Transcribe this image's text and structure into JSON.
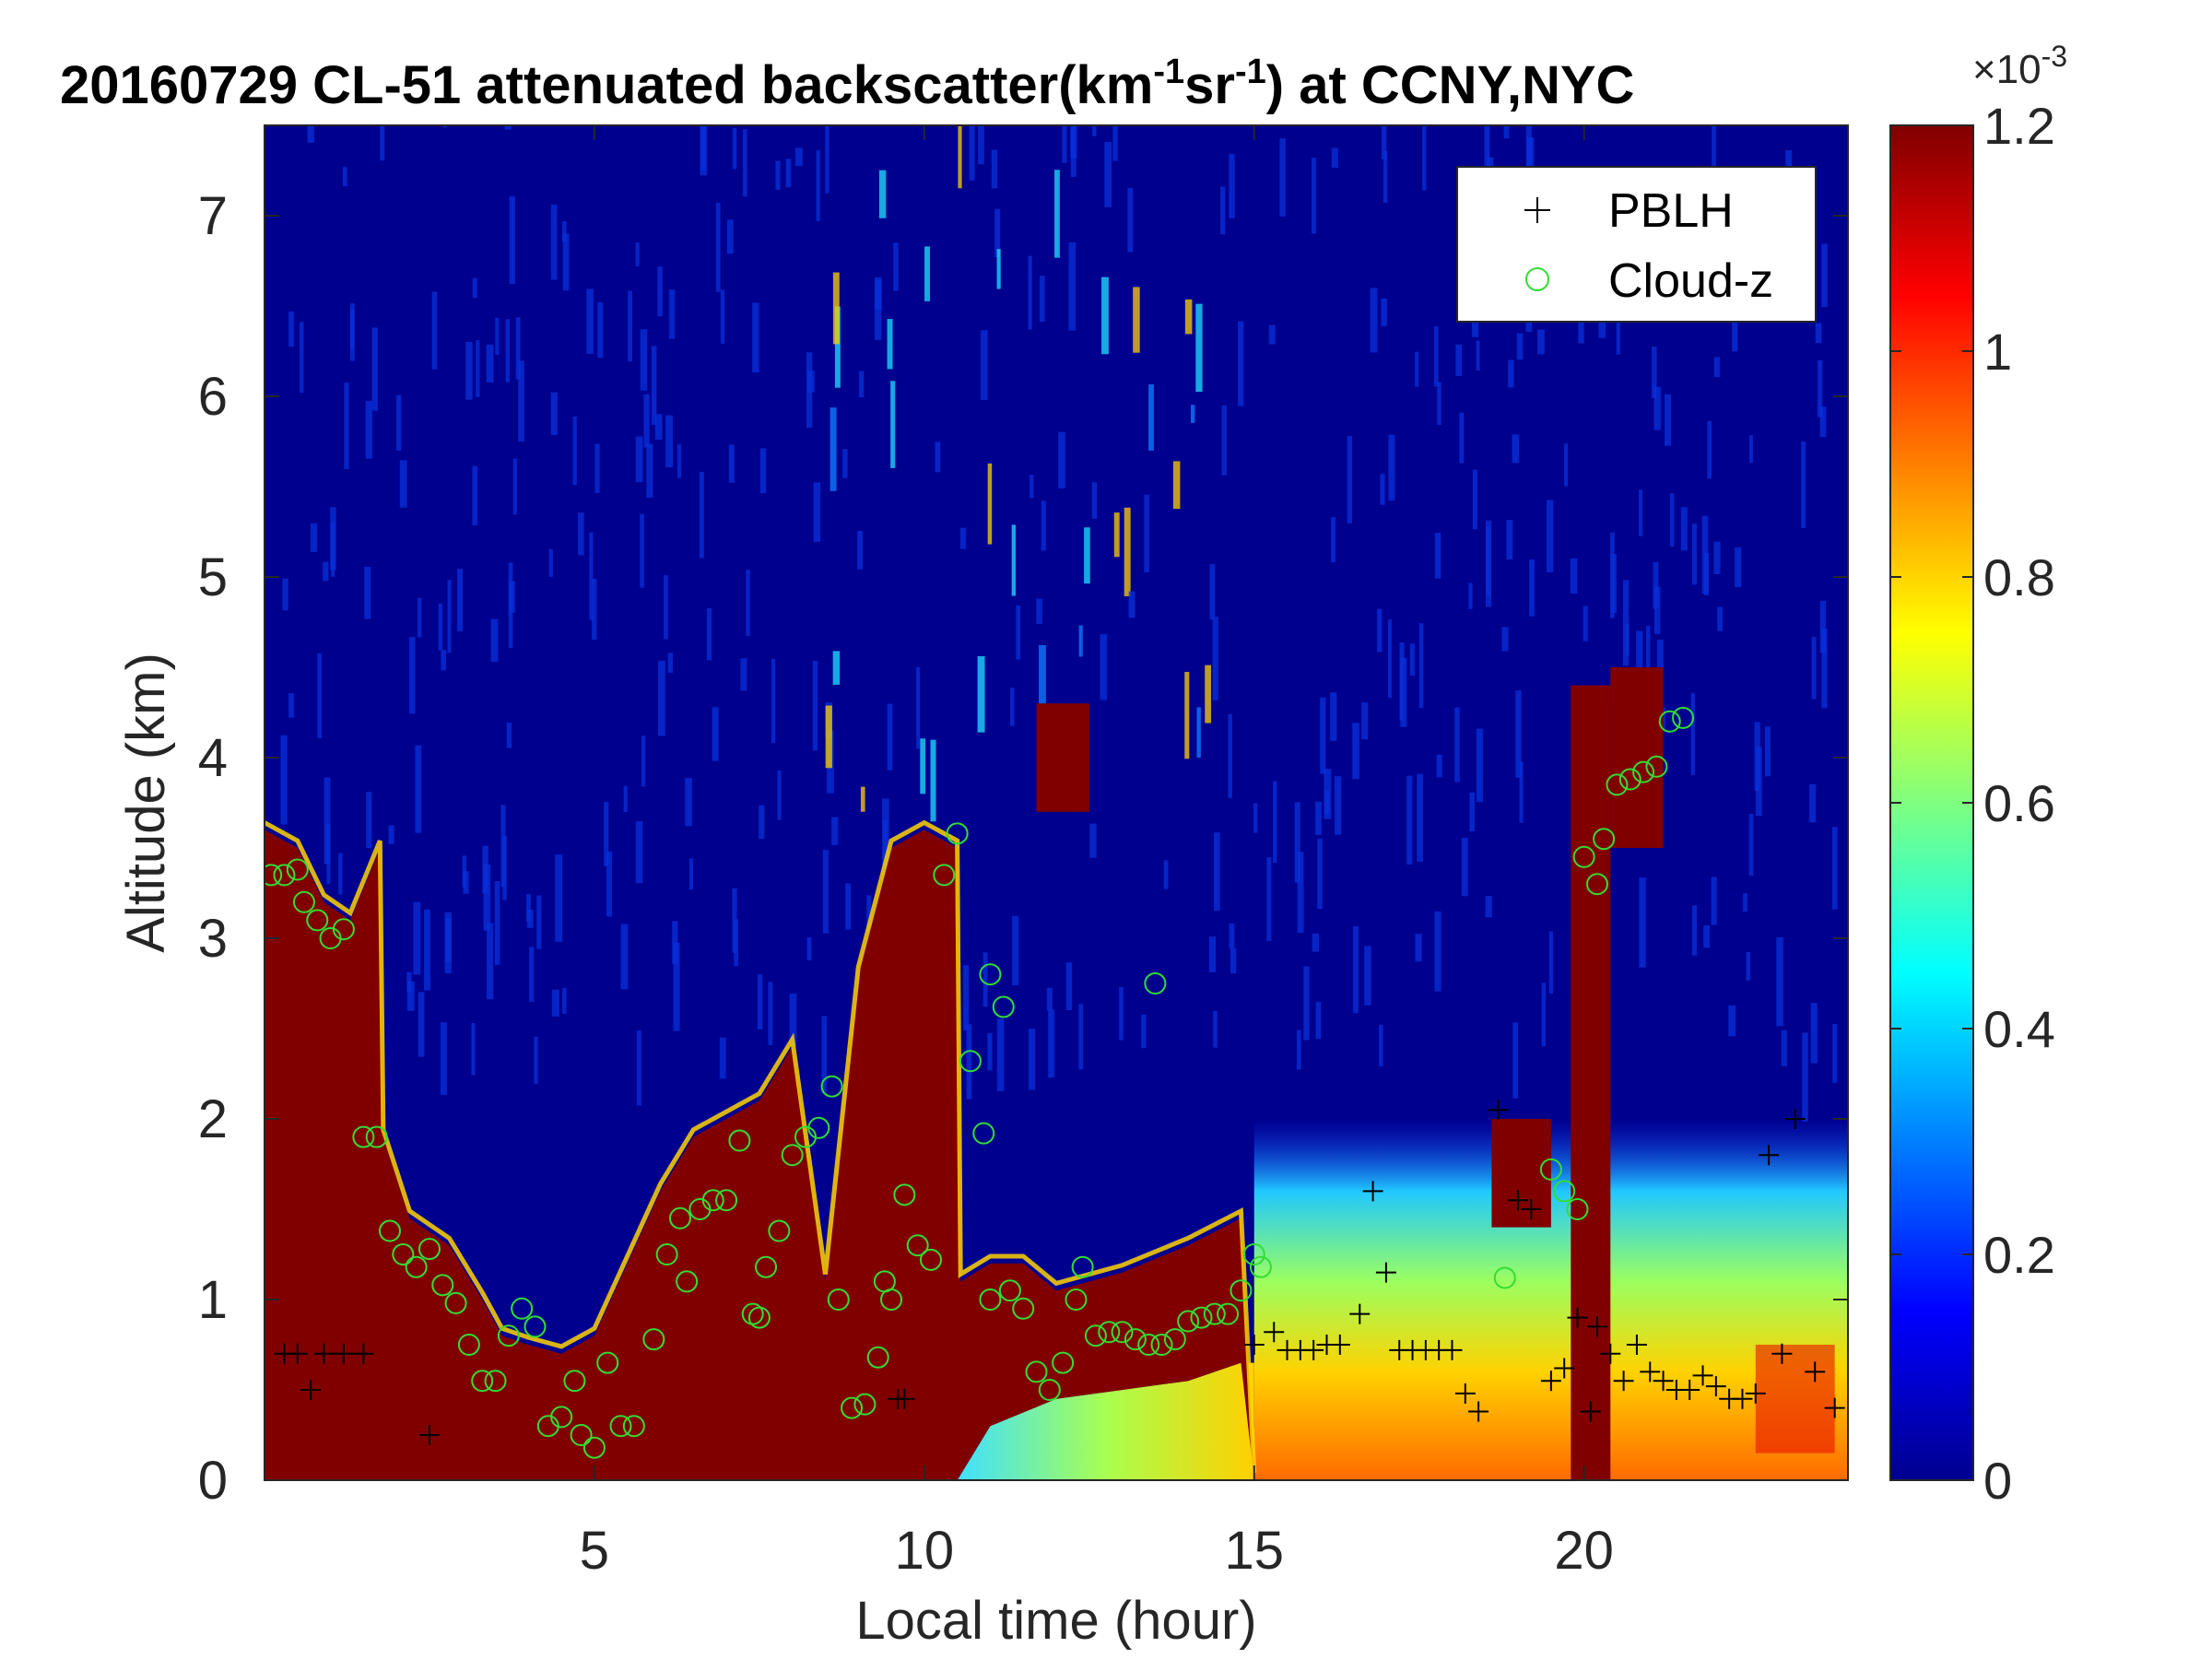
{
  "figure": {
    "title_main": "20160729  CL-51 attenuated backscatter(km",
    "title_sup1": "-1",
    "title_mid": "sr",
    "title_sup2": "-1",
    "title_end": ") at CCNY,NYC"
  },
  "colors": {
    "background_field": "#00008f",
    "saturated": "#800000",
    "pblh_marker": "#000000",
    "cloud_marker": "#33dd33"
  },
  "chart_data": {
    "type": "heatmap",
    "xlabel": "Local time (hour)",
    "ylabel": "Altitude (km)",
    "xlim": [
      0,
      24
    ],
    "ylim": [
      0,
      7.5
    ],
    "xticks": [
      5,
      10,
      15,
      20
    ],
    "yticks": [
      0,
      1,
      2,
      3,
      4,
      5,
      6,
      7
    ],
    "colorbar": {
      "range": [
        0,
        0.0012
      ],
      "tick_labels": [
        "0",
        "0.2",
        "0.4",
        "0.6",
        "0.8",
        "1",
        "1.2"
      ],
      "exponent_label": "×10",
      "exponent_value": "-3",
      "colormap": "jet"
    },
    "legend": {
      "position": "top-right",
      "entries": [
        "PBLH",
        "Cloud-z"
      ]
    },
    "saturated_layer_top_km": [
      [
        0.0,
        3.6
      ],
      [
        0.5,
        3.5
      ],
      [
        0.9,
        3.2
      ],
      [
        1.3,
        3.1
      ],
      [
        1.75,
        3.5
      ],
      [
        1.8,
        1.9
      ],
      [
        2.2,
        1.45
      ],
      [
        2.8,
        1.3
      ],
      [
        3.3,
        1.0
      ],
      [
        3.6,
        0.8
      ],
      [
        4.0,
        0.75
      ],
      [
        4.5,
        0.7
      ],
      [
        5.0,
        0.8
      ],
      [
        5.5,
        1.2
      ],
      [
        6.0,
        1.6
      ],
      [
        6.5,
        1.9
      ],
      [
        7.0,
        2.0
      ],
      [
        7.5,
        2.1
      ],
      [
        8.0,
        2.4
      ],
      [
        8.5,
        1.1
      ],
      [
        9.0,
        2.8
      ],
      [
        9.5,
        3.5
      ],
      [
        10.0,
        3.6
      ],
      [
        10.5,
        3.5
      ],
      [
        10.55,
        1.1
      ],
      [
        11.0,
        1.2
      ],
      [
        11.5,
        1.2
      ],
      [
        12.0,
        1.05
      ],
      [
        13.0,
        1.15
      ],
      [
        14.0,
        1.3
      ],
      [
        14.8,
        1.45
      ],
      [
        15.0,
        0.0
      ]
    ],
    "saturated_layer_bottom_km": [
      [
        0.0,
        0.0
      ],
      [
        10.5,
        0.0
      ],
      [
        11.0,
        0.3
      ],
      [
        12.0,
        0.45
      ],
      [
        13.0,
        0.5
      ],
      [
        14.0,
        0.55
      ],
      [
        14.8,
        0.65
      ]
    ],
    "cloud_patches": [
      {
        "time_range": [
          11.7,
          12.5
        ],
        "altitude_range": [
          3.7,
          4.3
        ]
      },
      {
        "time_range": [
          19.8,
          20.4
        ],
        "altitude_range": [
          0.0,
          4.4
        ]
      },
      {
        "time_range": [
          20.4,
          21.2
        ],
        "altitude_range": [
          3.5,
          4.5
        ]
      },
      {
        "time_range": [
          18.6,
          19.5
        ],
        "altitude_range": [
          1.4,
          2.0
        ]
      }
    ],
    "aerosol_layer": {
      "time_range": [
        15.0,
        24.0
      ],
      "altitude_range": [
        0.0,
        2.0
      ],
      "peak_value": 0.0011
    },
    "series": [
      {
        "name": "PBLH",
        "marker": "+",
        "points": [
          [
            0.3,
            0.7
          ],
          [
            0.5,
            0.7
          ],
          [
            0.7,
            0.5
          ],
          [
            0.9,
            0.7
          ],
          [
            1.2,
            0.7
          ],
          [
            1.5,
            0.7
          ],
          [
            2.5,
            0.25
          ],
          [
            9.6,
            0.45
          ],
          [
            9.7,
            0.45
          ],
          [
            15.0,
            0.75
          ],
          [
            15.3,
            0.82
          ],
          [
            15.5,
            0.72
          ],
          [
            15.7,
            0.72
          ],
          [
            15.9,
            0.72
          ],
          [
            16.1,
            0.75
          ],
          [
            16.3,
            0.75
          ],
          [
            16.6,
            0.92
          ],
          [
            16.8,
            1.6
          ],
          [
            17.0,
            1.15
          ],
          [
            17.2,
            0.72
          ],
          [
            17.4,
            0.72
          ],
          [
            17.6,
            0.72
          ],
          [
            17.8,
            0.72
          ],
          [
            18.0,
            0.72
          ],
          [
            18.2,
            0.48
          ],
          [
            18.4,
            0.38
          ],
          [
            18.7,
            2.05
          ],
          [
            19.0,
            1.55
          ],
          [
            19.2,
            1.5
          ],
          [
            19.5,
            0.55
          ],
          [
            19.7,
            0.62
          ],
          [
            19.9,
            0.9
          ],
          [
            20.2,
            0.85
          ],
          [
            20.4,
            0.7
          ],
          [
            20.6,
            0.55
          ],
          [
            20.8,
            0.75
          ],
          [
            21.0,
            0.6
          ],
          [
            21.2,
            0.55
          ],
          [
            21.4,
            0.5
          ],
          [
            21.6,
            0.5
          ],
          [
            21.8,
            0.58
          ],
          [
            22.0,
            0.52
          ],
          [
            22.2,
            0.45
          ],
          [
            22.4,
            0.45
          ],
          [
            22.6,
            0.48
          ],
          [
            22.8,
            1.8
          ],
          [
            23.0,
            0.7
          ],
          [
            23.2,
            2.0
          ],
          [
            23.5,
            0.6
          ],
          [
            23.8,
            0.4
          ],
          [
            20.1,
            0.38
          ]
        ]
      },
      {
        "name": "Cloud-z",
        "marker": "o",
        "points": [
          [
            0.1,
            3.35
          ],
          [
            0.3,
            3.35
          ],
          [
            0.5,
            3.38
          ],
          [
            0.6,
            3.2
          ],
          [
            0.8,
            3.1
          ],
          [
            1.0,
            3.0
          ],
          [
            1.2,
            3.05
          ],
          [
            1.5,
            1.9
          ],
          [
            1.7,
            1.9
          ],
          [
            1.9,
            1.38
          ],
          [
            2.1,
            1.25
          ],
          [
            2.3,
            1.18
          ],
          [
            2.5,
            1.28
          ],
          [
            2.7,
            1.08
          ],
          [
            2.9,
            0.98
          ],
          [
            3.1,
            0.75
          ],
          [
            3.3,
            0.55
          ],
          [
            3.5,
            0.55
          ],
          [
            3.7,
            0.8
          ],
          [
            3.9,
            0.95
          ],
          [
            4.1,
            0.85
          ],
          [
            4.3,
            0.3
          ],
          [
            4.5,
            0.35
          ],
          [
            4.7,
            0.55
          ],
          [
            4.8,
            0.25
          ],
          [
            5.0,
            0.18
          ],
          [
            5.2,
            0.65
          ],
          [
            5.4,
            0.3
          ],
          [
            5.6,
            0.3
          ],
          [
            5.9,
            0.78
          ],
          [
            6.1,
            1.25
          ],
          [
            6.3,
            1.45
          ],
          [
            6.4,
            1.1
          ],
          [
            6.6,
            1.5
          ],
          [
            6.8,
            1.55
          ],
          [
            7.0,
            1.55
          ],
          [
            7.2,
            1.88
          ],
          [
            7.4,
            0.92
          ],
          [
            7.5,
            0.9
          ],
          [
            7.6,
            1.18
          ],
          [
            7.8,
            1.38
          ],
          [
            8.0,
            1.8
          ],
          [
            8.2,
            1.9
          ],
          [
            8.4,
            1.95
          ],
          [
            8.6,
            2.18
          ],
          [
            8.7,
            1.0
          ],
          [
            8.9,
            0.4
          ],
          [
            9.1,
            0.42
          ],
          [
            9.3,
            0.68
          ],
          [
            9.4,
            1.1
          ],
          [
            9.5,
            1.0
          ],
          [
            9.7,
            1.58
          ],
          [
            9.9,
            1.3
          ],
          [
            10.1,
            1.22
          ],
          [
            10.3,
            3.35
          ],
          [
            10.5,
            3.58
          ],
          [
            10.7,
            2.32
          ],
          [
            10.9,
            1.92
          ],
          [
            11.0,
            2.8
          ],
          [
            11.2,
            2.62
          ],
          [
            11.0,
            1.0
          ],
          [
            11.3,
            1.05
          ],
          [
            11.5,
            0.95
          ],
          [
            11.7,
            0.6
          ],
          [
            11.9,
            0.5
          ],
          [
            12.1,
            0.65
          ],
          [
            12.3,
            1.0
          ],
          [
            12.4,
            1.18
          ],
          [
            12.6,
            0.8
          ],
          [
            12.8,
            0.82
          ],
          [
            13.0,
            0.82
          ],
          [
            13.2,
            0.78
          ],
          [
            13.4,
            0.75
          ],
          [
            13.5,
            2.75
          ],
          [
            13.6,
            0.75
          ],
          [
            13.8,
            0.78
          ],
          [
            14.0,
            0.88
          ],
          [
            14.2,
            0.9
          ],
          [
            14.4,
            0.92
          ],
          [
            14.6,
            0.92
          ],
          [
            14.8,
            1.05
          ],
          [
            15.0,
            1.25
          ],
          [
            15.1,
            1.18
          ],
          [
            19.5,
            1.72
          ],
          [
            19.7,
            1.6
          ],
          [
            19.9,
            1.5
          ],
          [
            20.0,
            3.45
          ],
          [
            20.2,
            3.3
          ],
          [
            20.3,
            3.55
          ],
          [
            20.5,
            3.85
          ],
          [
            20.7,
            3.88
          ],
          [
            20.9,
            3.92
          ],
          [
            21.1,
            3.95
          ],
          [
            21.3,
            4.2
          ],
          [
            21.5,
            4.22
          ],
          [
            18.8,
            1.12
          ]
        ]
      }
    ]
  }
}
